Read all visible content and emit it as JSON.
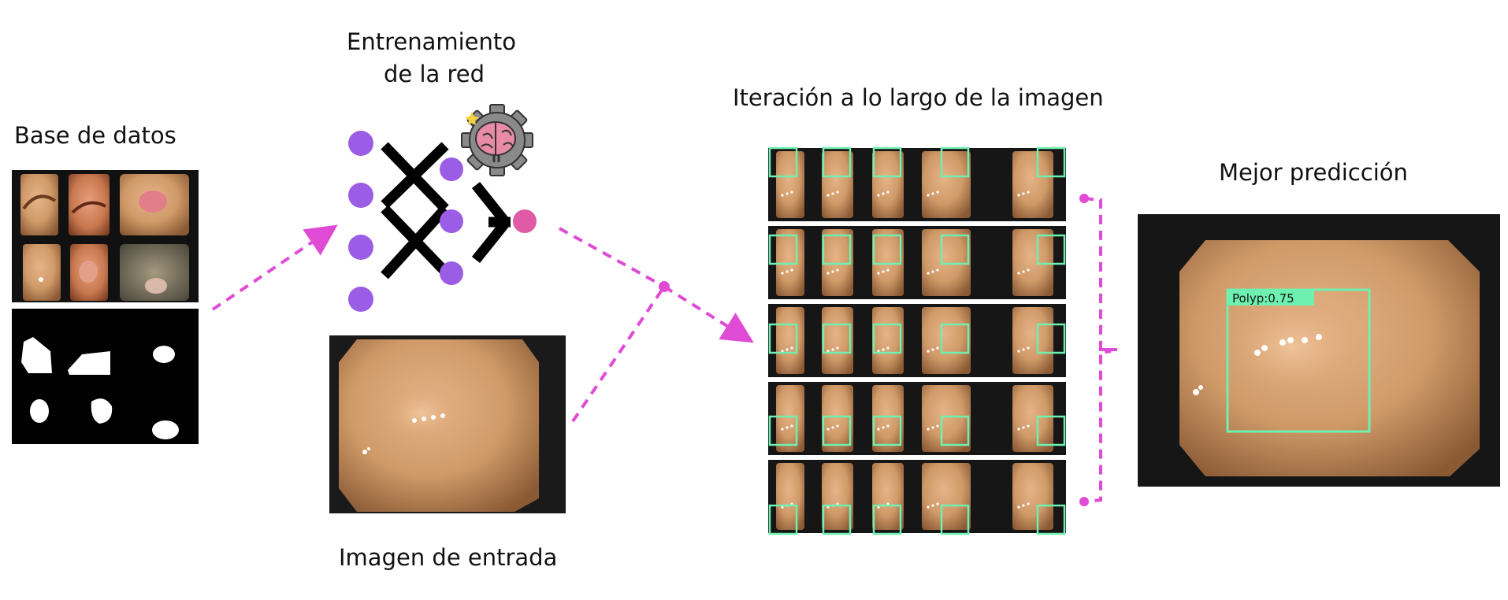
{
  "labels": {
    "database": "Base de datos",
    "training_line1": "Entrenamiento",
    "training_line2": "de la red",
    "input_image": "Imagen de entrada",
    "iteration": "Iteración a lo largo de la imagen",
    "best_prediction": "Mejor predicción"
  },
  "prediction": {
    "class": "Polyp",
    "score": "0.75",
    "tag": "Polyp:0.75"
  },
  "grid": {
    "rows": 5,
    "columns": 5
  },
  "icons": {
    "brain_gear": "brain-gear-icon",
    "nodes": "neural-node-icon"
  },
  "colors": {
    "arrow": "#e04bd6",
    "node": "#9b5de5",
    "output_node": "#e05aa6",
    "box": "#6ef0b0",
    "gear": "#8a8a8a",
    "brain": "#e88aa8"
  }
}
